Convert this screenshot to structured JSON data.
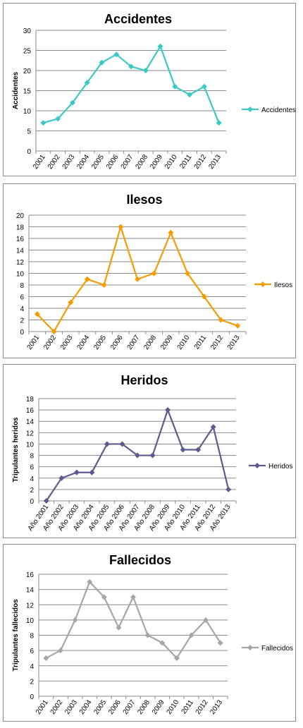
{
  "chart_data": [
    {
      "type": "line",
      "title": "Accidentes",
      "ylabel": "Accidentes",
      "xlabel": "",
      "ylim": [
        0,
        30
      ],
      "ystep": 5,
      "categories": [
        "2001",
        "2002",
        "2003",
        "2004",
        "2005",
        "2006",
        "2007",
        "2008",
        "2009",
        "2010",
        "2011",
        "2012",
        "2013"
      ],
      "series": [
        {
          "name": "Accidentes",
          "color": "#3cc8c8",
          "values": [
            7,
            8,
            12,
            17,
            22,
            24,
            21,
            20,
            26,
            16,
            14,
            16,
            7
          ]
        }
      ],
      "grid": true,
      "legend": "right"
    },
    {
      "type": "line",
      "title": "Ilesos",
      "ylabel": "",
      "xlabel": "",
      "ylim": [
        0,
        20
      ],
      "ystep": 2,
      "categories": [
        "2001",
        "2002",
        "2003",
        "2004",
        "2005",
        "2006",
        "2007",
        "2008",
        "2009",
        "2010",
        "2011",
        "2012",
        "2013"
      ],
      "series": [
        {
          "name": "Ilesos",
          "color": "#f59c00",
          "values": [
            3,
            0,
            5,
            9,
            8,
            18,
            9,
            10,
            17,
            10,
            6,
            2,
            1
          ]
        }
      ],
      "grid": true,
      "legend": "right"
    },
    {
      "type": "line",
      "title": "Heridos",
      "ylabel": "Tripulantes heridos",
      "xlabel": "",
      "ylim": [
        0,
        18
      ],
      "ystep": 2,
      "categories": [
        "Año 2001",
        "Año 2002",
        "Año 2003",
        "Año 2004",
        "Año 2005",
        "Año 2006",
        "Año 2007",
        "Año 2008",
        "Año 2009",
        "Año 2010",
        "Año 2011",
        "Año 2012",
        "Año 2013"
      ],
      "series": [
        {
          "name": "Heridos",
          "color": "#5b5b8f",
          "values": [
            0,
            4,
            5,
            5,
            10,
            10,
            8,
            8,
            16,
            9,
            9,
            13,
            2
          ]
        }
      ],
      "grid": true,
      "legend": "right"
    },
    {
      "type": "line",
      "title": "Fallecidos",
      "ylabel": "Tripulantes fallecidos",
      "xlabel": "",
      "ylim": [
        0,
        16
      ],
      "ystep": 2,
      "categories": [
        "2001",
        "2002",
        "2003",
        "2004",
        "2005",
        "2006",
        "2007",
        "2008",
        "2009",
        "2010",
        "2011",
        "2012",
        "2013"
      ],
      "series": [
        {
          "name": "Fallecidos",
          "color": "#a6a6a6",
          "values": [
            5,
            6,
            10,
            15,
            13,
            9,
            13,
            8,
            7,
            5,
            8,
            10,
            7
          ]
        }
      ],
      "grid": true,
      "legend": "right"
    }
  ]
}
